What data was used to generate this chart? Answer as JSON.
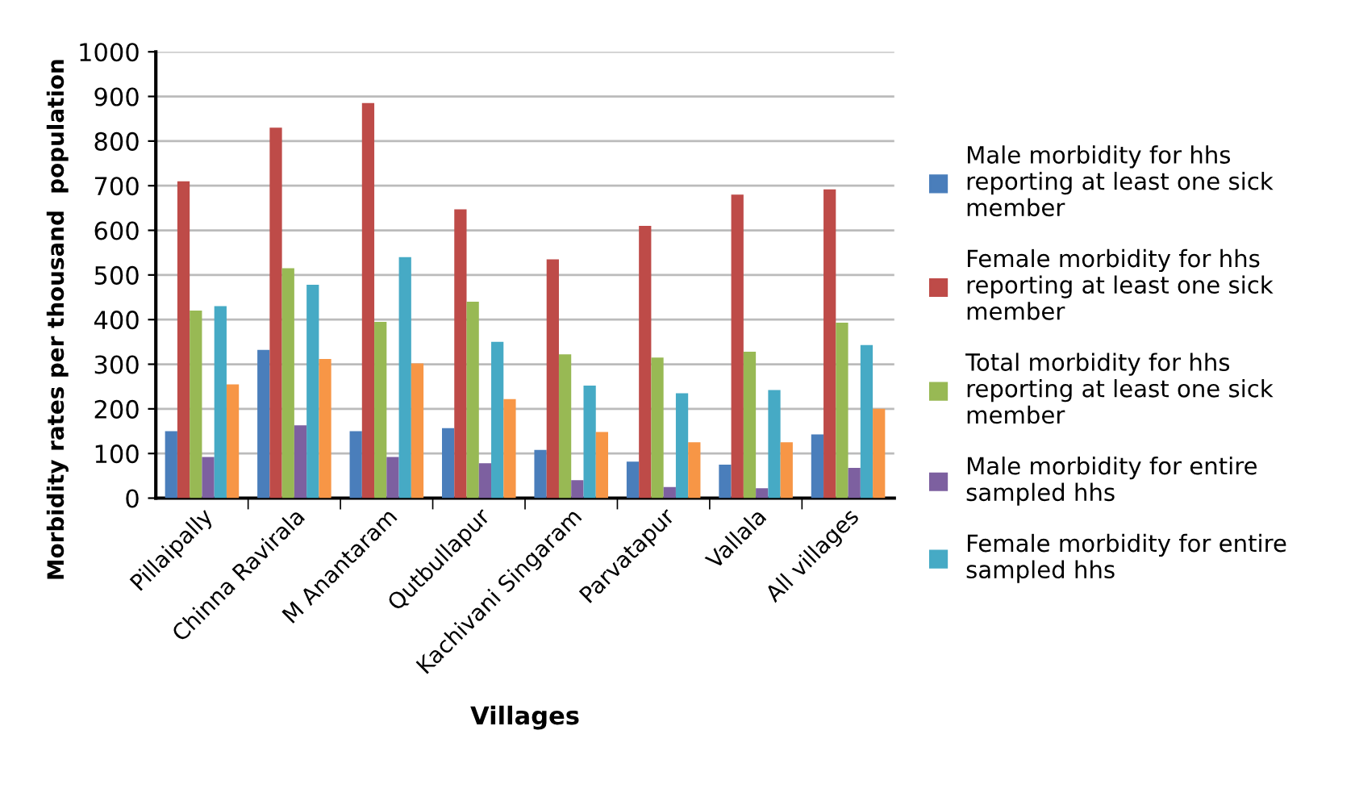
{
  "chart_data": {
    "type": "bar",
    "xlabel": "Villages",
    "ylabel": "Morbidity rates per thousand  population",
    "categories": [
      "Pillaipally",
      "Chinna Ravirala",
      "M Anantaram",
      "Qutbullapur",
      "Kachivani Singaram",
      "Parvatapur",
      "Vallala",
      "All villages"
    ],
    "series": [
      {
        "name": "Male morbidity for hhs reporting at least one sick member",
        "color": "#4a7ebb",
        "values": [
          150,
          332,
          150,
          157,
          108,
          82,
          75,
          143
        ]
      },
      {
        "name": "Female morbidity for hhs reporting at least one sick member",
        "color": "#be4b48",
        "values": [
          710,
          830,
          885,
          647,
          535,
          610,
          680,
          692
        ]
      },
      {
        "name": "Total morbidity for hhs reporting at least one sick member",
        "color": "#98b954",
        "values": [
          420,
          515,
          395,
          440,
          322,
          315,
          328,
          393
        ]
      },
      {
        "name": "Male morbidity for entire sampled hhs",
        "color": "#7d60a0",
        "values": [
          92,
          163,
          92,
          78,
          40,
          25,
          22,
          68
        ]
      },
      {
        "name": "Female morbidity for entire sampled hhs",
        "color": "#46aac5",
        "values": [
          430,
          478,
          540,
          350,
          252,
          235,
          242,
          343
        ]
      },
      {
        "color": "#f79646",
        "values": [
          255,
          312,
          302,
          222,
          148,
          125,
          125,
          200
        ]
      }
    ],
    "ylim": [
      0,
      1000
    ],
    "yticks": [
      0,
      100,
      200,
      300,
      400,
      500,
      600,
      700,
      800,
      900,
      1000
    ],
    "grid": "y",
    "legend": "right"
  }
}
